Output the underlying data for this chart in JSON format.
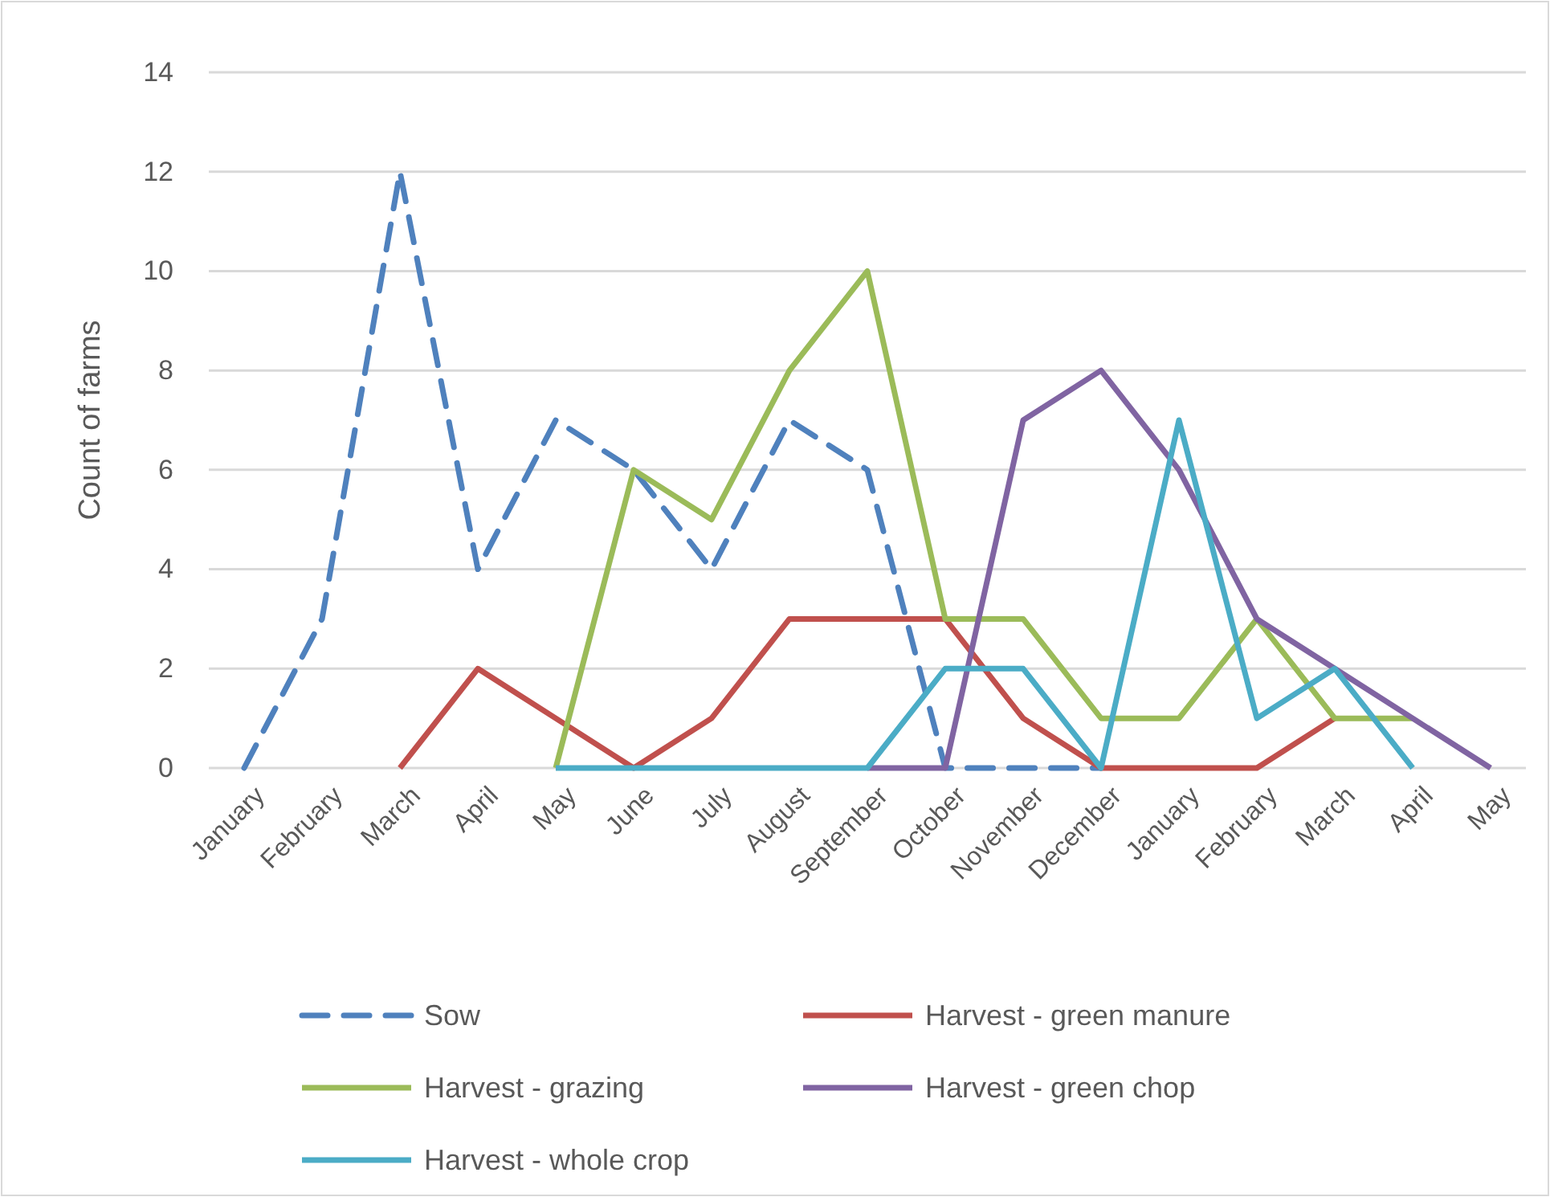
{
  "chart_data": {
    "type": "line",
    "ylabel": "Count of farms",
    "categories": [
      "January",
      "February",
      "March",
      "April",
      "May",
      "June",
      "July",
      "August",
      "September",
      "October",
      "November",
      "December",
      "January",
      "February",
      "March",
      "April",
      "May"
    ],
    "ylim": [
      0,
      14
    ],
    "yticks": [
      0,
      2,
      4,
      6,
      8,
      10,
      12,
      14
    ],
    "grid": "y",
    "legend": "bottom",
    "marker": "none",
    "series": [
      {
        "name": "Sow",
        "color": "#4f81bd",
        "line_style": "dashed",
        "values": [
          0,
          3,
          12,
          4,
          7,
          6,
          4,
          7,
          6,
          0,
          0,
          0,
          null,
          null,
          null,
          null,
          null
        ]
      },
      {
        "name": "Harvest - green manure",
        "color": "#c0504d",
        "values": [
          null,
          null,
          0,
          2,
          1,
          0,
          1,
          3,
          3,
          3,
          1,
          0,
          0,
          0,
          1,
          null,
          null
        ]
      },
      {
        "name": "Harvest - grazing",
        "color": "#9bbb59",
        "values": [
          null,
          null,
          null,
          null,
          0,
          6,
          5,
          8,
          10,
          3,
          3,
          1,
          1,
          3,
          1,
          1,
          null
        ]
      },
      {
        "name": "Harvest - green chop",
        "color": "#8064a2",
        "values": [
          null,
          null,
          null,
          null,
          null,
          null,
          null,
          null,
          0,
          0,
          7,
          8,
          6,
          3,
          2,
          1,
          0
        ]
      },
      {
        "name": "Harvest - whole crop",
        "color": "#4bacc6",
        "values": [
          null,
          null,
          null,
          null,
          0,
          0,
          0,
          0,
          0,
          2,
          2,
          0,
          7,
          1,
          2,
          0,
          null
        ]
      }
    ]
  }
}
